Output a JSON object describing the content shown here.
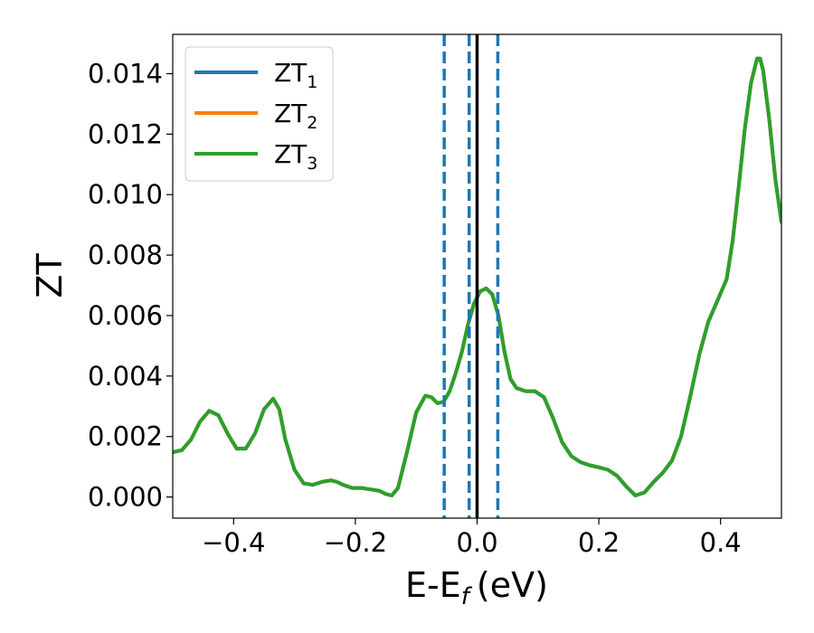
{
  "chart_data": {
    "type": "line",
    "title": "",
    "xlabel_main": "E-E",
    "xlabel_sub": "f",
    "xlabel_unit": "(eV)",
    "ylabel": "ZT",
    "xlim": [
      -0.5,
      0.5
    ],
    "ylim": [
      -0.0007,
      0.0153
    ],
    "xticks": [
      -0.4,
      -0.2,
      0.0,
      0.2,
      0.4
    ],
    "xtick_labels": [
      "−0.4",
      "−0.2",
      "0.0",
      "0.2",
      "0.4"
    ],
    "yticks": [
      0.0,
      0.002,
      0.004,
      0.006,
      0.008,
      0.01,
      0.012,
      0.014
    ],
    "ytick_labels": [
      "0.000",
      "0.002",
      "0.004",
      "0.006",
      "0.008",
      "0.010",
      "0.012",
      "0.014"
    ],
    "grid": false,
    "legend_position": "top-left",
    "series": [
      {
        "name": "ZT",
        "sub": "1",
        "color": "#1f77b4"
      },
      {
        "name": "ZT",
        "sub": "2",
        "color": "#ff7f0e"
      },
      {
        "name": "ZT",
        "sub": "3",
        "color": "#2ca02c"
      }
    ],
    "x": [
      -0.5,
      -0.485,
      -0.47,
      -0.455,
      -0.44,
      -0.425,
      -0.41,
      -0.395,
      -0.38,
      -0.365,
      -0.35,
      -0.335,
      -0.325,
      -0.315,
      -0.3,
      -0.285,
      -0.27,
      -0.255,
      -0.24,
      -0.23,
      -0.22,
      -0.205,
      -0.19,
      -0.175,
      -0.16,
      -0.15,
      -0.14,
      -0.13,
      -0.115,
      -0.1,
      -0.085,
      -0.075,
      -0.065,
      -0.055,
      -0.045,
      -0.035,
      -0.025,
      -0.015,
      -0.005,
      0.005,
      0.015,
      0.025,
      0.035,
      0.045,
      0.055,
      0.065,
      0.08,
      0.095,
      0.11,
      0.125,
      0.14,
      0.155,
      0.17,
      0.185,
      0.2,
      0.215,
      0.23,
      0.245,
      0.26,
      0.275,
      0.29,
      0.305,
      0.32,
      0.335,
      0.35,
      0.365,
      0.38,
      0.395,
      0.41,
      0.42,
      0.43,
      0.44,
      0.45,
      0.46,
      0.465,
      0.47,
      0.48,
      0.49,
      0.5
    ],
    "y": [
      0.00148,
      0.00155,
      0.0019,
      0.0025,
      0.00285,
      0.0027,
      0.0021,
      0.0016,
      0.0016,
      0.0021,
      0.0029,
      0.00325,
      0.0029,
      0.0019,
      0.0009,
      0.00045,
      0.0004,
      0.0005,
      0.00055,
      0.0005,
      0.0004,
      0.0003,
      0.0003,
      0.00025,
      0.0002,
      0.0001,
      5e-05,
      0.0003,
      0.0015,
      0.0028,
      0.00335,
      0.0033,
      0.0031,
      0.00315,
      0.0035,
      0.0041,
      0.0048,
      0.0057,
      0.0064,
      0.0068,
      0.0069,
      0.0067,
      0.006,
      0.0048,
      0.0039,
      0.0036,
      0.0035,
      0.0035,
      0.0033,
      0.0026,
      0.0018,
      0.00135,
      0.00115,
      0.00105,
      0.00098,
      0.0009,
      0.0007,
      0.00035,
      5e-05,
      0.00015,
      0.0005,
      0.0008,
      0.0012,
      0.002,
      0.0033,
      0.0047,
      0.0058,
      0.0065,
      0.0072,
      0.0085,
      0.0103,
      0.0122,
      0.0137,
      0.0145,
      0.0145,
      0.0141,
      0.0125,
      0.0105,
      0.0091
    ],
    "vlines": [
      {
        "x": -0.054,
        "style": "dashed",
        "color": "#1f77b4"
      },
      {
        "x": -0.013,
        "style": "dashed",
        "color": "#1f77b4"
      },
      {
        "x": 0.0,
        "style": "solid",
        "color": "#000000"
      },
      {
        "x": 0.034,
        "style": "dashed",
        "color": "#1f77b4"
      }
    ]
  }
}
